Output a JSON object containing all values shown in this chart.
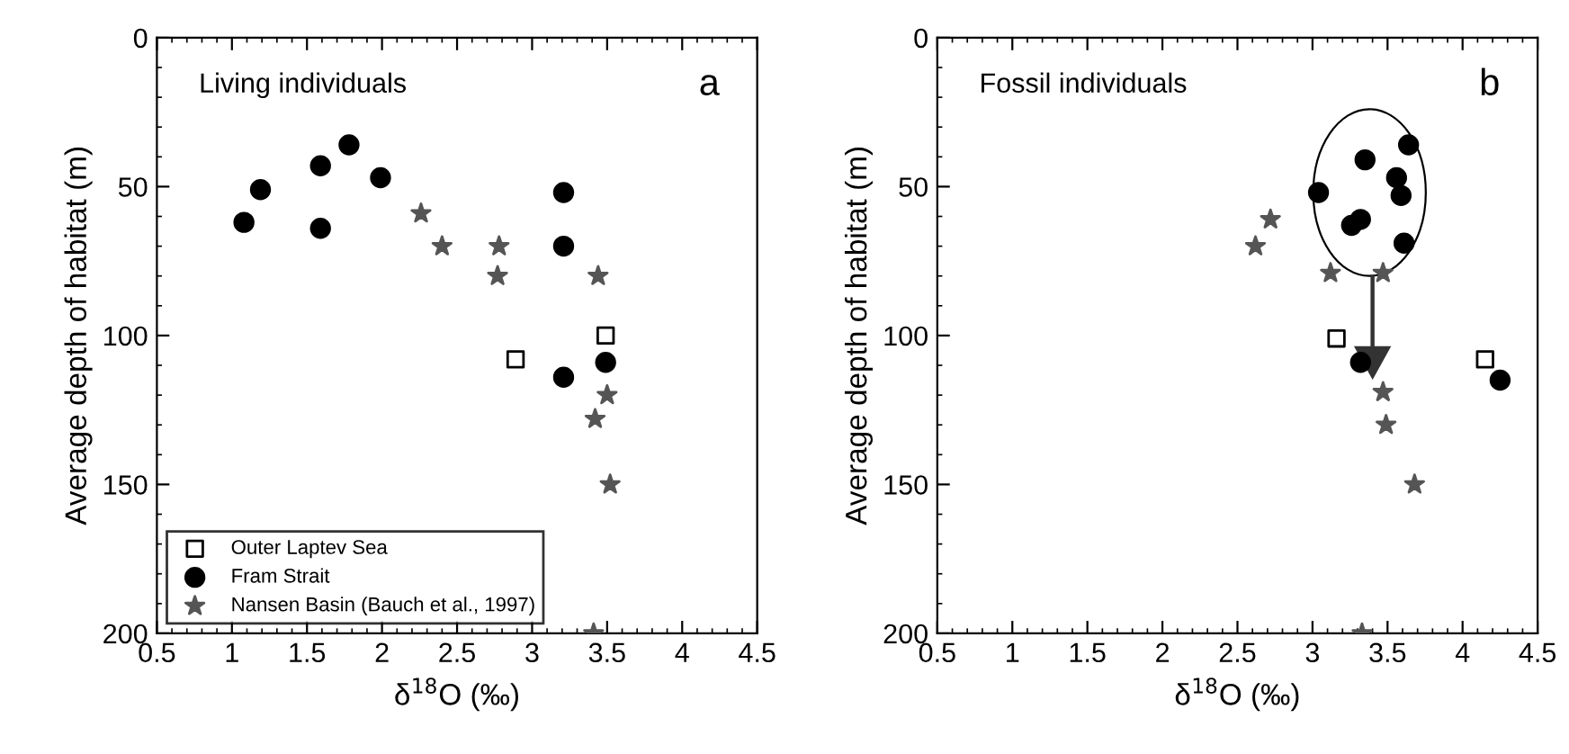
{
  "chart_data": [
    {
      "type": "scatter",
      "xlabel": "δ$^{18}$O (‰)",
      "ylabel": "Average depth of habitat (m)",
      "annotations": [
        "Living individuals",
        "a"
      ],
      "xlim": [
        0.5,
        4.5
      ],
      "xticks": [
        0.5,
        1,
        1.5,
        2,
        2.5,
        3,
        3.5,
        4,
        4.5
      ],
      "ylim": [
        200,
        0
      ],
      "yticks": [
        0,
        50,
        100,
        150,
        200
      ],
      "grid": false,
      "legend": "bottom left",
      "series": [
        {
          "name": "Outer Laptev Sea",
          "color": "#000000",
          "marker": "square",
          "x": [
            2.89,
            3.49
          ],
          "values": [
            108,
            100
          ]
        },
        {
          "name": "Fram Strait",
          "color": "#000000",
          "marker": "circle",
          "x": [
            1.08,
            1.19,
            1.59,
            1.59,
            1.78,
            1.99,
            3.21,
            3.21,
            3.21,
            3.49
          ],
          "values": [
            62,
            51,
            43,
            64,
            36,
            47,
            52,
            70,
            114,
            109
          ]
        },
        {
          "name": "Nansen Basin (Bauch et al., 1997)",
          "color": "#555555",
          "marker": "star",
          "x": [
            2.26,
            2.4,
            2.78,
            2.77,
            3.44,
            3.5,
            3.42,
            3.52,
            3.41
          ],
          "values": [
            59,
            70,
            70,
            80,
            80,
            120,
            128,
            150,
            200
          ]
        }
      ]
    },
    {
      "type": "scatter",
      "xlabel": "δ$^{18}$O (‰)",
      "ylabel": "Average depth of habitat (m)",
      "annotations": [
        "Fossil individuals",
        "b"
      ],
      "xlim": [
        0.5,
        4.5
      ],
      "xticks": [
        0.5,
        1,
        1.5,
        2,
        2.5,
        3,
        3.5,
        4,
        4.5
      ],
      "ylim": [
        200,
        0
      ],
      "yticks": [
        0,
        50,
        100,
        150,
        200
      ],
      "grid": false,
      "legend": false,
      "series": [
        {
          "color": "#000000",
          "marker": "square",
          "x": [
            3.16,
            4.15
          ],
          "values": [
            101,
            108
          ]
        },
        {
          "color": "#000000",
          "marker": "circle",
          "x": [
            3.35,
            3.04,
            3.26,
            3.32,
            3.56,
            3.59,
            3.64,
            3.61,
            3.32,
            4.25
          ],
          "values": [
            41,
            52,
            63,
            61,
            47,
            53,
            36,
            69,
            109,
            115
          ]
        },
        {
          "color": "#555555",
          "marker": "star",
          "x": [
            2.72,
            2.62,
            3.12,
            3.47,
            3.47,
            3.49,
            3.68,
            3.33
          ],
          "values": [
            61,
            70,
            79,
            79,
            119,
            130,
            150,
            200
          ]
        }
      ]
    }
  ]
}
